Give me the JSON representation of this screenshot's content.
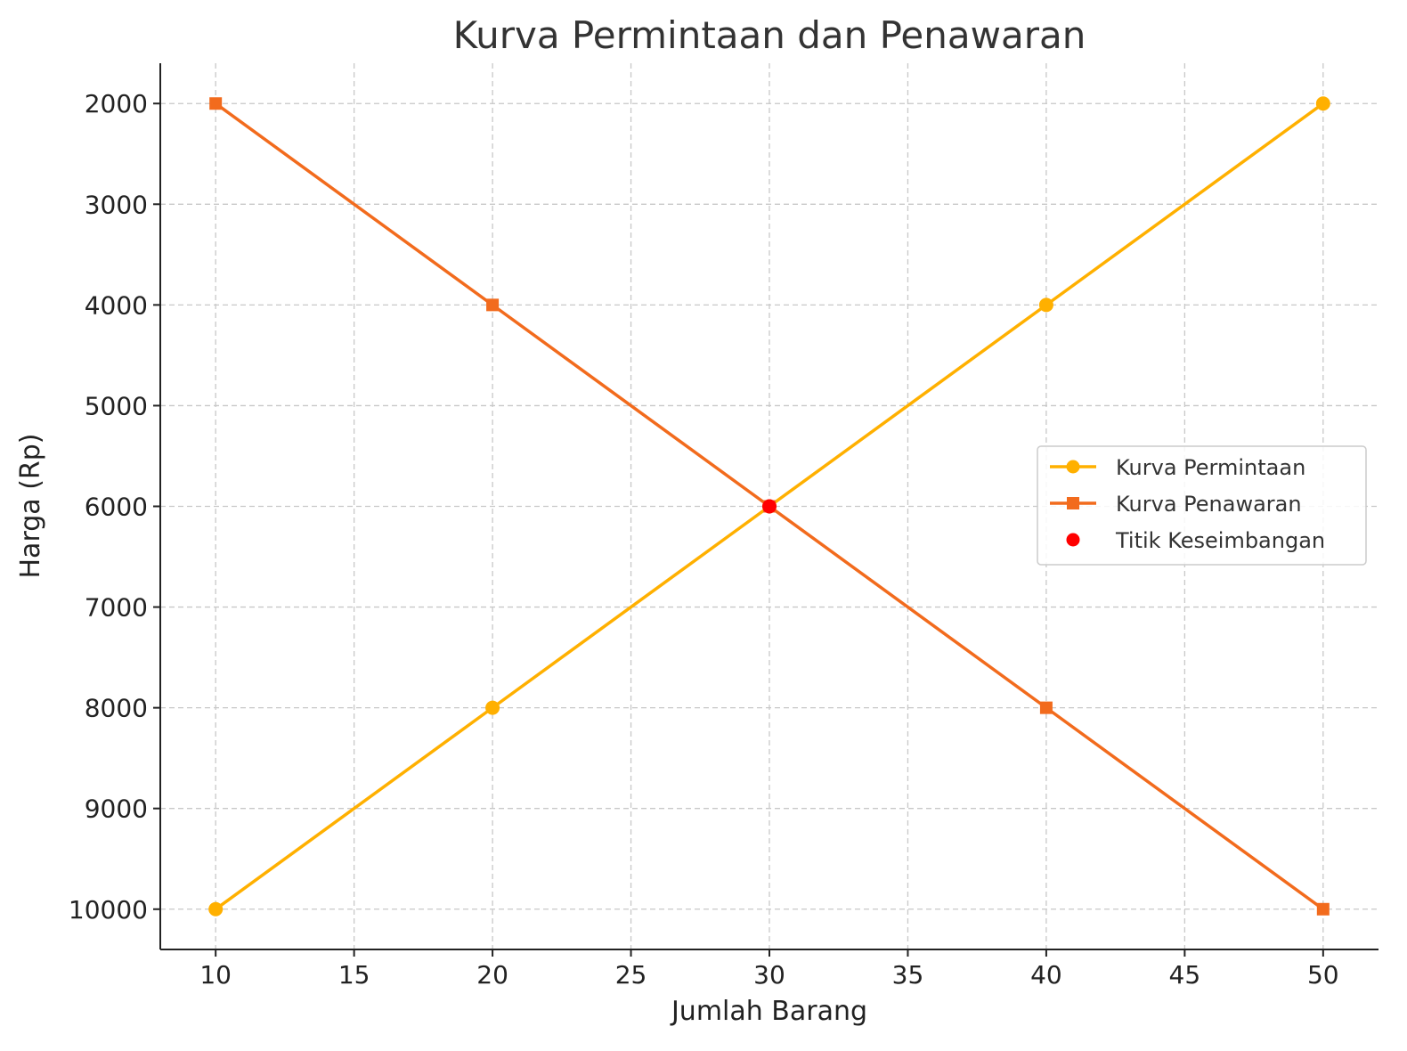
{
  "chart_data": {
    "type": "line",
    "title": "Kurva Permintaan dan Penawaran",
    "xlabel": "Jumlah Barang",
    "ylabel": "Harga (Rp)",
    "xlim": [
      8,
      52
    ],
    "ylim": [
      1600,
      10400
    ],
    "y_inverted": true,
    "x_ticks": [
      10,
      15,
      20,
      25,
      30,
      35,
      40,
      45,
      50
    ],
    "y_ticks": [
      2000,
      3000,
      4000,
      5000,
      6000,
      7000,
      8000,
      9000,
      10000
    ],
    "grid": true,
    "legend_position": "center-right",
    "series": [
      {
        "name": "Kurva Permintaan",
        "color": "#FFB000",
        "marker": "circle",
        "x": [
          10,
          20,
          30,
          40,
          50
        ],
        "y": [
          10000,
          8000,
          6000,
          4000,
          2000
        ]
      },
      {
        "name": "Kurva Penawaran",
        "color": "#F26B1D",
        "marker": "square",
        "x": [
          10,
          20,
          30,
          40,
          50
        ],
        "y": [
          2000,
          4000,
          6000,
          8000,
          10000
        ]
      },
      {
        "name": "Titik Keseimbangan",
        "color": "#FF0000",
        "marker": "circle",
        "line": false,
        "x": [
          30
        ],
        "y": [
          6000
        ]
      }
    ]
  }
}
